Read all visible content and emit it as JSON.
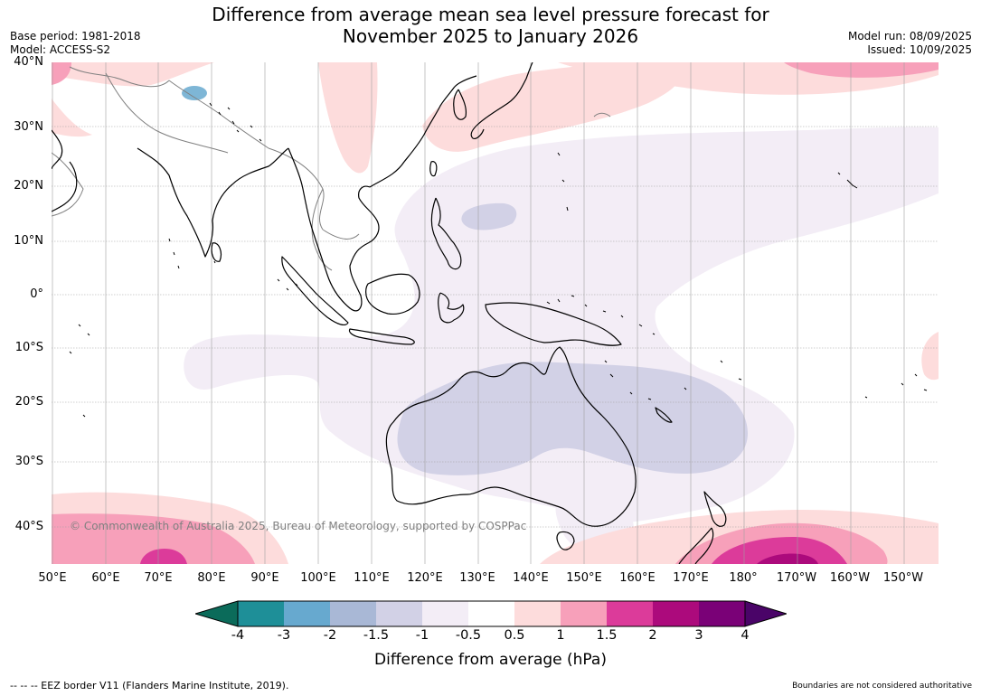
{
  "title": {
    "line1": "Difference from average mean sea level pressure forecast for",
    "line2": "November 2025 to January 2026"
  },
  "meta": {
    "base_period": "Base period: 1981-2018",
    "model": "Model: ACCESS-S2",
    "model_run": "Model run: 08/09/2025",
    "issued": "Issued: 10/09/2025"
  },
  "axes": {
    "lat_labels": [
      "40°N",
      "30°N",
      "20°N",
      "10°N",
      "0°",
      "10°S",
      "20°S",
      "30°S",
      "40°S"
    ],
    "lon_labels": [
      "50°E",
      "60°E",
      "70°E",
      "80°E",
      "90°E",
      "100°E",
      "110°E",
      "120°E",
      "130°E",
      "140°E",
      "150°E",
      "160°E",
      "170°E",
      "180°",
      "170°W",
      "160°W",
      "150°W"
    ]
  },
  "colorbar": {
    "title": "Difference from average (hPa)",
    "tick_labels": [
      "-4",
      "-3",
      "-2",
      "-1.5",
      "-1",
      "-0.5",
      "0.5",
      "1",
      "1.5",
      "2",
      "3",
      "4"
    ],
    "colors": [
      "#0b6b5a",
      "#1e8f98",
      "#67a9cf",
      "#a9b8d6",
      "#d2d1e6",
      "#f3edf6",
      "#ffffff",
      "#fddcdc",
      "#f7a0ba",
      "#dc3b9a",
      "#ac0a7c",
      "#7a0177",
      "#4a0468"
    ]
  },
  "copyright": "© Commonwealth of Australia 2025, Bureau of Meteorology, supported by COSPPac",
  "footer": {
    "eez": "--  --  -- EEZ border V11 (Flanders Marine Institute, 2019).",
    "disclaimer": "Boundaries are not considered authoritative"
  },
  "map_colors": {
    "ocean": "#ffffff",
    "land_outline": "#000000",
    "country_border": "#808080",
    "grid": "#a0a0a0"
  }
}
